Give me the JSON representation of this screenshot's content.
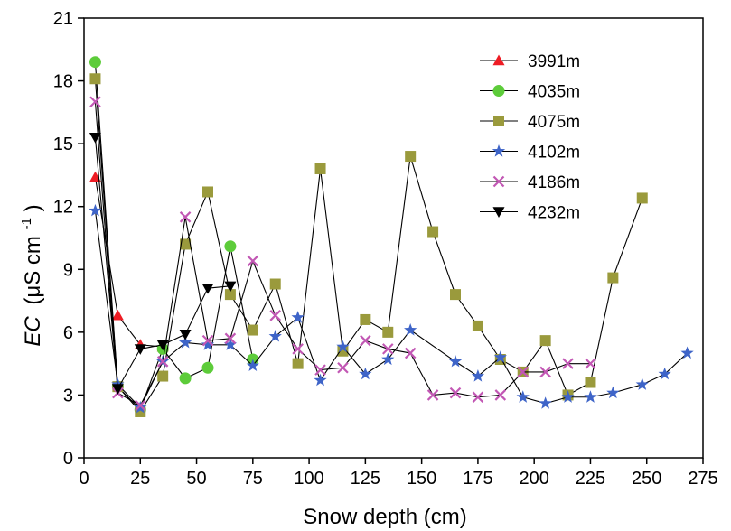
{
  "chart_data": {
    "type": "line",
    "xlabel": "Snow depth (cm)",
    "ylabel_italic": "EC",
    "ylabel_unit": "(μS cm",
    "ylabel_sup": "-1",
    "ylabel_close": ")",
    "xlim": [
      0,
      275
    ],
    "ylim": [
      0,
      21
    ],
    "xticks": [
      0,
      25,
      50,
      75,
      100,
      125,
      150,
      175,
      200,
      225,
      250,
      275
    ],
    "yticks": [
      0,
      3,
      6,
      9,
      12,
      15,
      18,
      21
    ],
    "grid": false,
    "legend_position": "top-right",
    "series": [
      {
        "name": "3991m",
        "marker": "triangle-up",
        "color": "#ee1c24",
        "x": [
          5,
          15,
          25,
          35
        ],
        "y": [
          13.4,
          6.8,
          5.4,
          5.3
        ]
      },
      {
        "name": "4035m",
        "marker": "circle",
        "color": "#5dcc3a",
        "x": [
          5,
          15,
          25,
          35,
          45,
          55,
          65,
          75
        ],
        "y": [
          18.9,
          3.4,
          2.3,
          5.2,
          3.8,
          4.3,
          10.1,
          4.7
        ]
      },
      {
        "name": "4075m",
        "marker": "square",
        "color": "#9a9a3c",
        "x": [
          5,
          15,
          25,
          35,
          45,
          55,
          65,
          75,
          85,
          95,
          105,
          115,
          125,
          135,
          145,
          155,
          165,
          175,
          185,
          195,
          205,
          215,
          225,
          235,
          248
        ],
        "y": [
          18.1,
          3.4,
          2.2,
          3.9,
          10.2,
          12.7,
          7.8,
          6.1,
          8.3,
          4.5,
          13.8,
          5.1,
          6.6,
          6.0,
          14.4,
          10.8,
          7.8,
          6.3,
          4.7,
          4.1,
          5.6,
          3.0,
          3.6,
          8.6,
          12.4
        ]
      },
      {
        "name": "4102m",
        "marker": "star",
        "color": "#3e64c8",
        "x": [
          5,
          15,
          25,
          35,
          45,
          55,
          65,
          75,
          85,
          95,
          105,
          115,
          125,
          135,
          145,
          165,
          175,
          185,
          195,
          205,
          215,
          225,
          235,
          248,
          258,
          268
        ],
        "y": [
          11.8,
          3.5,
          2.4,
          4.6,
          5.5,
          5.4,
          5.4,
          4.4,
          5.8,
          6.7,
          3.7,
          5.3,
          4.0,
          4.7,
          6.1,
          4.6,
          3.9,
          4.8,
          2.9,
          2.6,
          2.9,
          2.9,
          3.1,
          3.5,
          4.0,
          5.0
        ]
      },
      {
        "name": "4186m",
        "marker": "x",
        "color": "#c257b4",
        "x": [
          5,
          15,
          25,
          35,
          45,
          55,
          65,
          75,
          85,
          95,
          105,
          115,
          125,
          135,
          145,
          155,
          165,
          175,
          185,
          195,
          205,
          215,
          225
        ],
        "y": [
          17.0,
          3.1,
          2.5,
          4.6,
          11.5,
          5.6,
          5.7,
          9.4,
          6.8,
          5.2,
          4.2,
          4.3,
          5.6,
          5.2,
          5.0,
          3.0,
          3.1,
          2.9,
          3.0,
          4.1,
          4.1,
          4.5,
          4.5
        ]
      },
      {
        "name": "4232m",
        "marker": "triangle-down",
        "color": "#000000",
        "x": [
          5,
          15,
          25,
          35,
          45,
          55,
          65
        ],
        "y": [
          15.3,
          3.3,
          5.2,
          5.4,
          5.9,
          8.1,
          8.2
        ]
      }
    ]
  }
}
